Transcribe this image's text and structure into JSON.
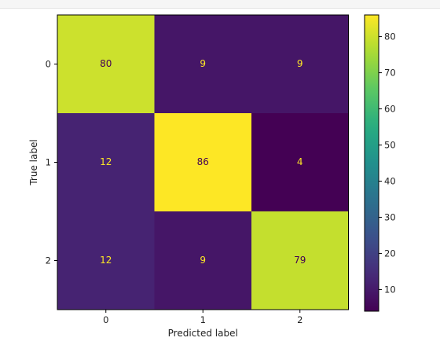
{
  "chart_data": {
    "type": "heatmap",
    "title": "",
    "xlabel": "Predicted label",
    "ylabel": "True label",
    "x_categories": [
      "0",
      "1",
      "2"
    ],
    "y_categories": [
      "0",
      "1",
      "2"
    ],
    "values": [
      [
        80,
        9,
        9
      ],
      [
        12,
        86,
        4
      ],
      [
        12,
        9,
        79
      ]
    ],
    "colormap": "viridis",
    "color_range": [
      4,
      86
    ],
    "colorbar_ticks": [
      "10",
      "20",
      "30",
      "40",
      "50",
      "60",
      "70",
      "80"
    ],
    "colorbar_tick_values": [
      10,
      20,
      30,
      40,
      50,
      60,
      70,
      80
    ],
    "text_color_light": "#fde725",
    "text_color_dark": "#440154",
    "grid": false
  }
}
